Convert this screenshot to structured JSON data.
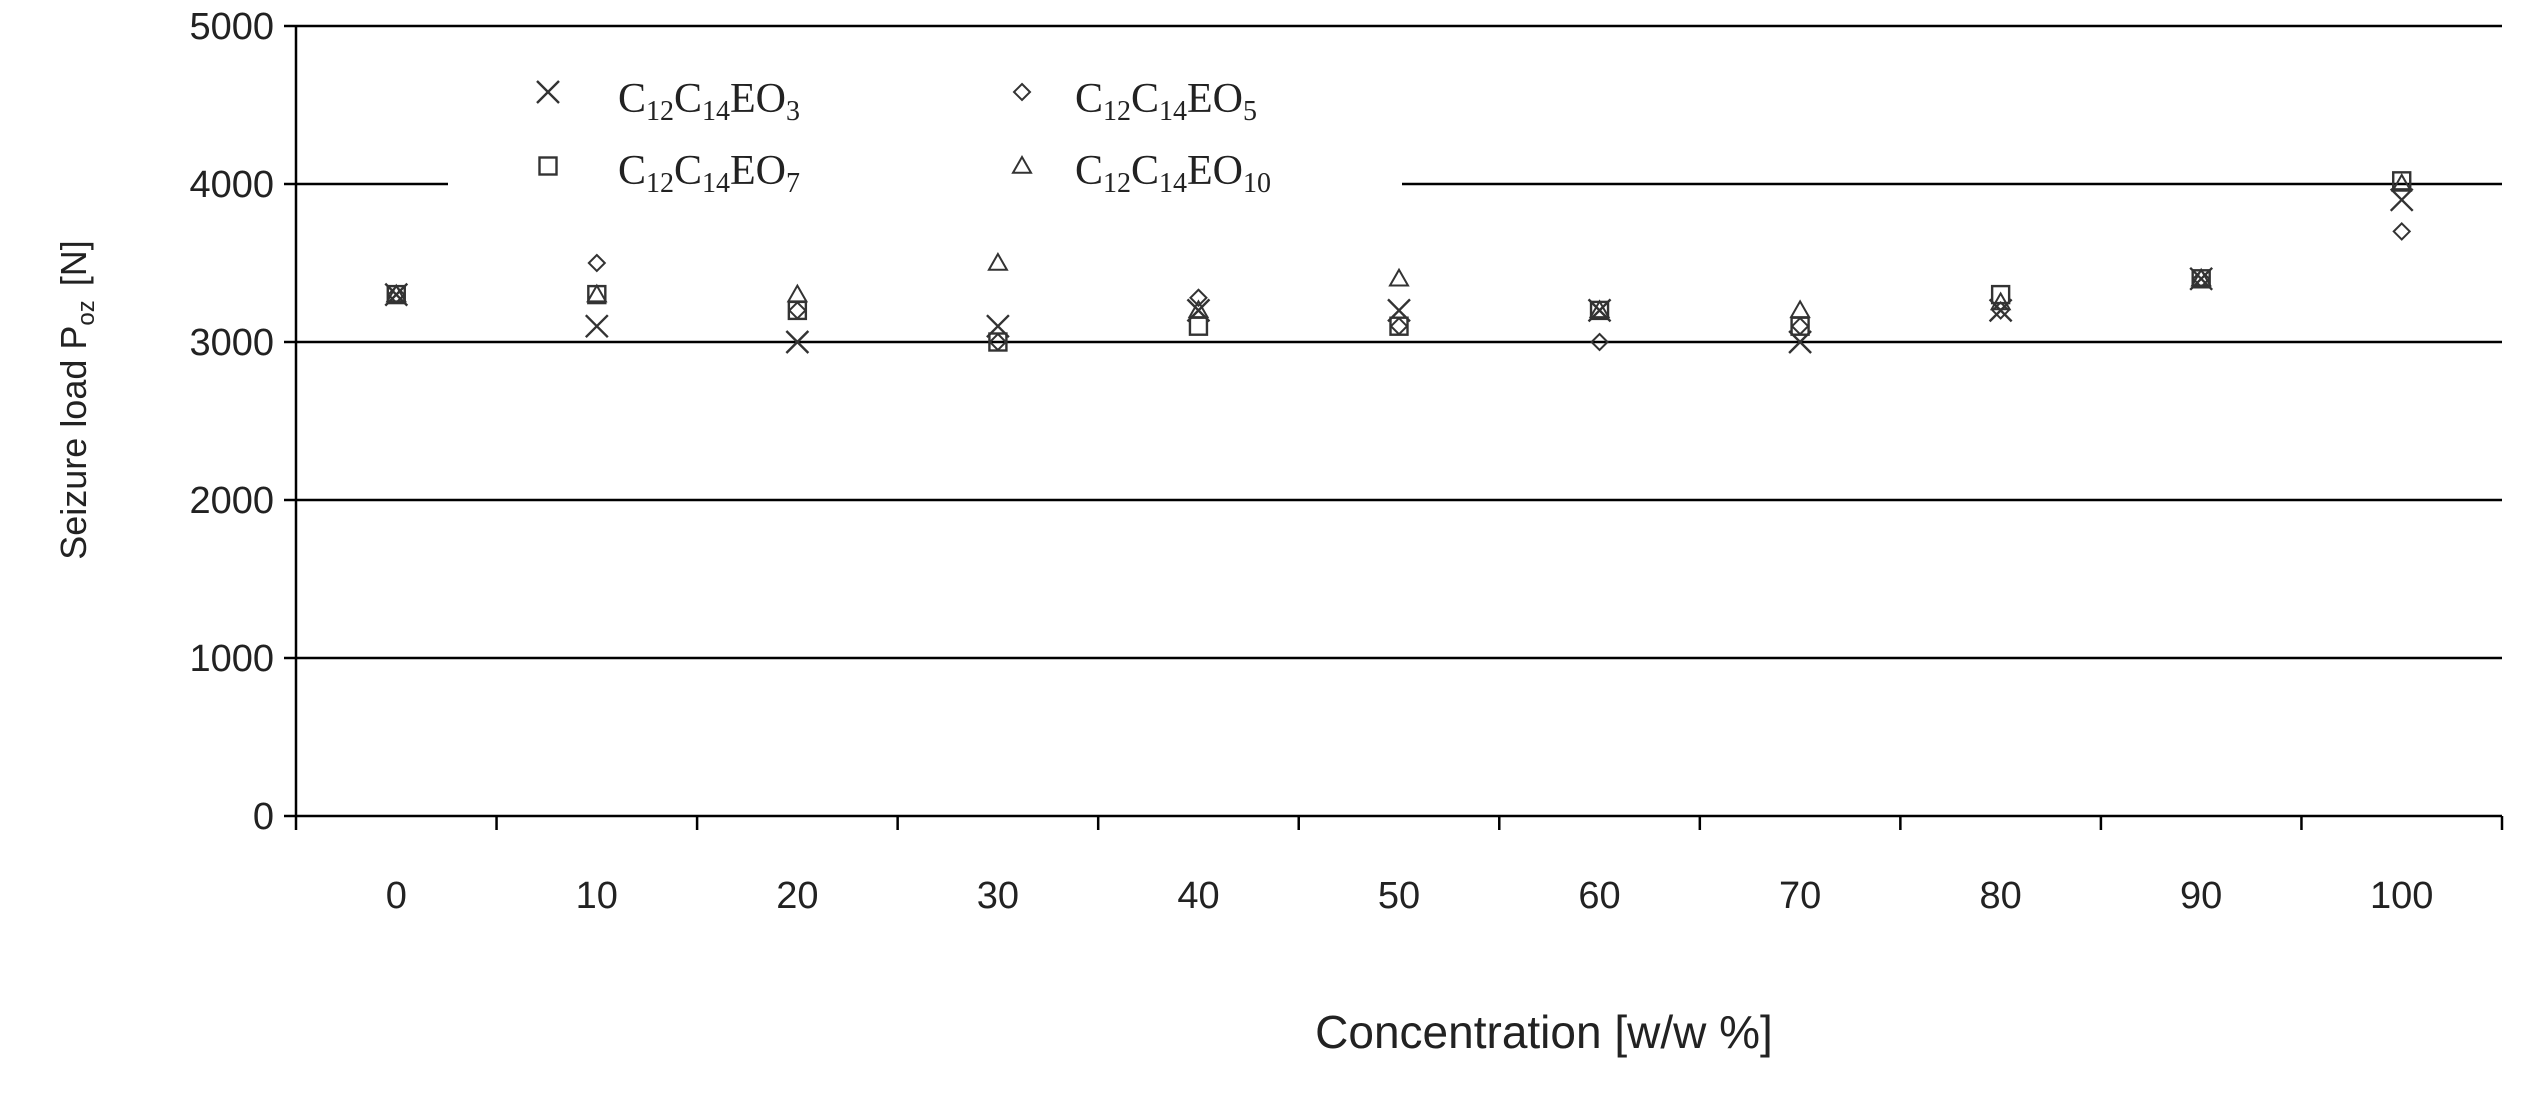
{
  "chart_data": {
    "type": "scatter",
    "title": "",
    "xlabel": "Concentration [w/w %]",
    "ylabel_main": "Seizure load P",
    "ylabel_sub": "oz",
    "ylabel_unit": "[N]",
    "x": [
      0,
      10,
      20,
      30,
      40,
      50,
      60,
      70,
      80,
      90,
      100
    ],
    "x_tick_labels": [
      "0",
      "10",
      "20",
      "30",
      "40",
      "50",
      "60",
      "70",
      "80",
      "90",
      "100"
    ],
    "y_tick_labels": [
      "0",
      "1000",
      "2000",
      "3000",
      "4000",
      "5000"
    ],
    "ylim": [
      0,
      5000
    ],
    "grid": "horizontal",
    "legend_position": "top-left",
    "series": [
      {
        "name": "C12C14EO3",
        "legend_parts": [
          [
            "C",
            ""
          ],
          [
            "12",
            "sub"
          ],
          [
            "C",
            ""
          ],
          [
            "14",
            "sub"
          ],
          [
            "EO",
            ""
          ],
          [
            "3",
            "sub"
          ]
        ],
        "marker": "x",
        "values": [
          3300,
          3100,
          3000,
          3100,
          3200,
          3200,
          3200,
          3000,
          3200,
          3400,
          3900
        ]
      },
      {
        "name": "C12C14EO5",
        "legend_parts": [
          [
            "C",
            ""
          ],
          [
            "12",
            "sub"
          ],
          [
            "C",
            ""
          ],
          [
            "14",
            "sub"
          ],
          [
            "EO",
            ""
          ],
          [
            "5",
            "sub"
          ]
        ],
        "marker": "diamond",
        "values": [
          3300,
          3500,
          3200,
          3000,
          3280,
          3100,
          3000,
          3100,
          3200,
          3400,
          3700
        ]
      },
      {
        "name": "C12C14EO7",
        "legend_parts": [
          [
            "C",
            ""
          ],
          [
            "12",
            "sub"
          ],
          [
            "C",
            ""
          ],
          [
            "14",
            "sub"
          ],
          [
            "EO",
            ""
          ],
          [
            "7",
            "sub"
          ]
        ],
        "marker": "square",
        "values": [
          3300,
          3300,
          3200,
          3000,
          3100,
          3100,
          3200,
          3100,
          3300,
          3400,
          4020
        ]
      },
      {
        "name": "C12C14EO10",
        "legend_parts": [
          [
            "C",
            ""
          ],
          [
            "12",
            "sub"
          ],
          [
            "C",
            ""
          ],
          [
            "14",
            "sub"
          ],
          [
            "EO",
            ""
          ],
          [
            "10",
            "sub"
          ]
        ],
        "marker": "triangle",
        "values": [
          3300,
          3300,
          3300,
          3500,
          3200,
          3400,
          3200,
          3200,
          3250,
          3400,
          4000
        ]
      }
    ]
  }
}
